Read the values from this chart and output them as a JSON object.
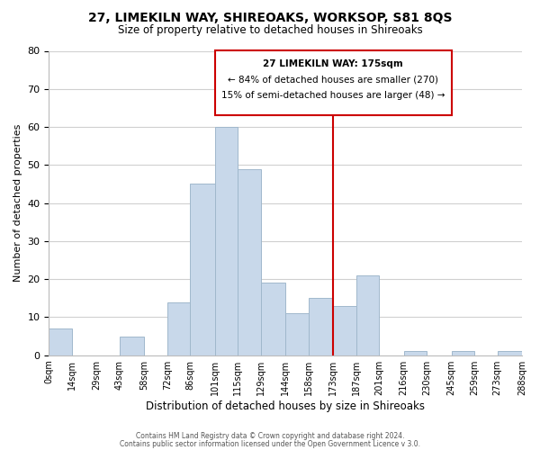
{
  "title": "27, LIMEKILN WAY, SHIREOAKS, WORKSOP, S81 8QS",
  "subtitle": "Size of property relative to detached houses in Shireoaks",
  "xlabel": "Distribution of detached houses by size in Shireoaks",
  "ylabel": "Number of detached properties",
  "bar_color": "#c8d8ea",
  "bar_edge_color": "#a0b8cc",
  "grid_color": "#d0d0d0",
  "bin_edges": [
    0,
    14,
    29,
    43,
    58,
    72,
    86,
    101,
    115,
    129,
    144,
    158,
    173,
    187,
    201,
    216,
    230,
    245,
    259,
    273,
    288
  ],
  "counts": [
    7,
    0,
    0,
    5,
    0,
    14,
    45,
    60,
    49,
    19,
    11,
    15,
    13,
    21,
    0,
    1,
    0,
    1,
    0,
    1
  ],
  "x_tick_labels": [
    "0sqm",
    "14sqm",
    "29sqm",
    "43sqm",
    "58sqm",
    "72sqm",
    "86sqm",
    "101sqm",
    "115sqm",
    "129sqm",
    "144sqm",
    "158sqm",
    "173sqm",
    "187sqm",
    "201sqm",
    "216sqm",
    "230sqm",
    "245sqm",
    "259sqm",
    "273sqm",
    "288sqm"
  ],
  "property_label": "27 LIMEKILN WAY: 175sqm",
  "annotation_line1": "← 84% of detached houses are smaller (270)",
  "annotation_line2": "15% of semi-detached houses are larger (48) →",
  "vline_color": "#cc0000",
  "vline_x": 173,
  "ylim": [
    0,
    80
  ],
  "footer1": "Contains HM Land Registry data © Crown copyright and database right 2024.",
  "footer2": "Contains public sector information licensed under the Open Government Licence v 3.0.",
  "bg_color": "#ffffff",
  "annotation_box_color": "#ffffff",
  "annotation_box_edge": "#cc0000"
}
